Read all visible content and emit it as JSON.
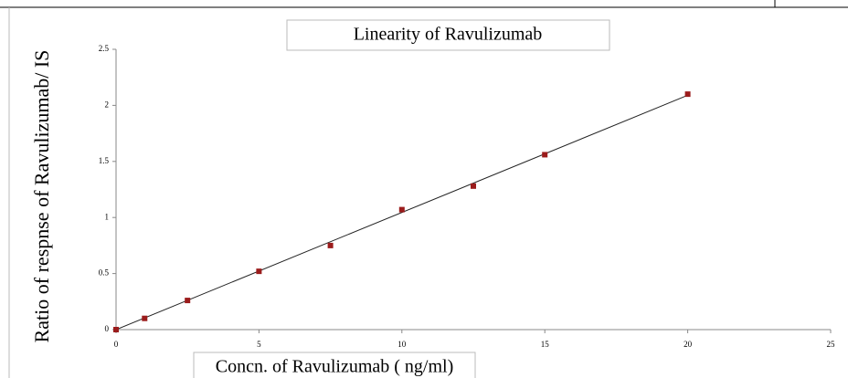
{
  "chart_data": {
    "type": "scatter",
    "title": "Linearity of  Ravulizumab",
    "x_label": "Concn. of Ravulizumab ( ng/ml)",
    "y_label": "Ratio of respnse of Ravulizumab/ IS",
    "x": [
      0,
      1,
      2.5,
      5,
      7.5,
      10,
      12.5,
      15,
      20
    ],
    "values": [
      0,
      0.1,
      0.26,
      0.52,
      0.75,
      1.07,
      1.28,
      1.56,
      2.1
    ],
    "color": "#9b1c1c",
    "trendline": {
      "x": [
        0,
        20
      ],
      "values": [
        0,
        2.09
      ],
      "color": "#222222"
    },
    "xlim": [
      0,
      25
    ],
    "xticks": [
      0,
      5,
      10,
      15,
      20,
      25
    ],
    "ylim": [
      0,
      2.5
    ],
    "yticks": [
      0,
      0.5,
      1,
      1.5,
      2,
      2.5
    ]
  }
}
